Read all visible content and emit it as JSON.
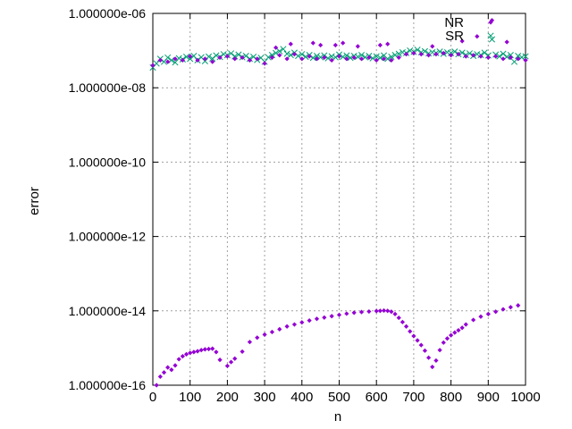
{
  "chart_data": {
    "type": "scatter",
    "title": "",
    "xlabel": "n",
    "ylabel": "error",
    "xlim": [
      0,
      1000
    ],
    "ylim": [
      1e-16,
      1e-06
    ],
    "yscale": "log",
    "grid": true,
    "legend_position": "top-right",
    "xticks": [
      0,
      100,
      200,
      300,
      400,
      500,
      600,
      700,
      800,
      900,
      1000
    ],
    "xtick_labels": [
      "0",
      "100",
      "200",
      "300",
      "400",
      "500",
      "600",
      "700",
      "800",
      "900",
      "1000"
    ],
    "yticks": [
      1e-16,
      1e-14,
      1e-12,
      1e-10,
      1e-08,
      1e-06
    ],
    "ytick_labels": [
      "1.000000e-16",
      "1.000000e-14",
      "1.000000e-12",
      "1.000000e-10",
      "1.000000e-08",
      "1.000000e-06"
    ],
    "series": [
      {
        "name": "NR",
        "marker": "diamond",
        "color": "#9400d3",
        "points": [
          [
            0,
            4e-08
          ],
          [
            20,
            5.5e-08
          ],
          [
            40,
            5e-08
          ],
          [
            60,
            6e-08
          ],
          [
            80,
            5.5e-08
          ],
          [
            100,
            7e-08
          ],
          [
            120,
            5.5e-08
          ],
          [
            140,
            6e-08
          ],
          [
            160,
            5e-08
          ],
          [
            180,
            6.5e-08
          ],
          [
            200,
            7e-08
          ],
          [
            220,
            6e-08
          ],
          [
            240,
            6.5e-08
          ],
          [
            260,
            5.5e-08
          ],
          [
            280,
            6e-08
          ],
          [
            300,
            4.5e-08
          ],
          [
            320,
            6.5e-08
          ],
          [
            340,
            7.5e-08
          ],
          [
            360,
            6e-08
          ],
          [
            380,
            8e-08
          ],
          [
            400,
            6e-08
          ],
          [
            420,
            7e-08
          ],
          [
            440,
            6e-08
          ],
          [
            460,
            6.5e-08
          ],
          [
            480,
            5.5e-08
          ],
          [
            500,
            7e-08
          ],
          [
            520,
            6e-08
          ],
          [
            540,
            6.5e-08
          ],
          [
            560,
            6e-08
          ],
          [
            580,
            6.5e-08
          ],
          [
            600,
            5.5e-08
          ],
          [
            620,
            6e-08
          ],
          [
            640,
            5.5e-08
          ],
          [
            660,
            6.5e-08
          ],
          [
            680,
            8e-08
          ],
          [
            700,
            8.5e-08
          ],
          [
            720,
            8e-08
          ],
          [
            740,
            7.5e-08
          ],
          [
            760,
            8e-08
          ],
          [
            780,
            8.5e-08
          ],
          [
            800,
            7.5e-08
          ],
          [
            820,
            8e-08
          ],
          [
            840,
            7e-08
          ],
          [
            860,
            7.5e-08
          ],
          [
            880,
            7e-08
          ],
          [
            900,
            6.5e-08
          ],
          [
            920,
            7e-08
          ],
          [
            940,
            6e-08
          ],
          [
            960,
            6.5e-08
          ],
          [
            980,
            6e-08
          ],
          [
            1000,
            5.5e-08
          ],
          [
            330,
            1.2e-07
          ],
          [
            370,
            1.5e-07
          ],
          [
            430,
            1.6e-07
          ],
          [
            450,
            1.4e-07
          ],
          [
            490,
            1.4e-07
          ],
          [
            510,
            1.6e-07
          ],
          [
            550,
            1.3e-07
          ],
          [
            610,
            1.4e-07
          ],
          [
            630,
            1.5e-07
          ],
          [
            750,
            1.3e-07
          ],
          [
            830,
            1.8e-07
          ],
          [
            870,
            2.4e-07
          ],
          [
            910,
            6.5e-07
          ],
          [
            950,
            1.7e-07
          ],
          [
            10,
            1e-16
          ],
          [
            20,
            1.7e-16
          ],
          [
            30,
            2.2e-16
          ],
          [
            40,
            3e-16
          ],
          [
            50,
            2.6e-16
          ],
          [
            60,
            3.4e-16
          ],
          [
            70,
            5e-16
          ],
          [
            80,
            6e-16
          ],
          [
            90,
            6.8e-16
          ],
          [
            100,
            7.4e-16
          ],
          [
            110,
            7.8e-16
          ],
          [
            120,
            8.2e-16
          ],
          [
            130,
            8.8e-16
          ],
          [
            140,
            9.2e-16
          ],
          [
            150,
            9.4e-16
          ],
          [
            160,
            9.6e-16
          ],
          [
            170,
            7.8e-16
          ],
          [
            180,
            4.8e-16
          ],
          [
            200,
            3.3e-16
          ],
          [
            210,
            4.2e-16
          ],
          [
            220,
            5.2e-16
          ],
          [
            240,
            8e-16
          ],
          [
            260,
            1.45e-15
          ],
          [
            280,
            1.9e-15
          ],
          [
            300,
            2.3e-15
          ],
          [
            320,
            2.7e-15
          ],
          [
            340,
            3.2e-15
          ],
          [
            360,
            3.8e-15
          ],
          [
            380,
            4.3e-15
          ],
          [
            400,
            4.9e-15
          ],
          [
            420,
            5.5e-15
          ],
          [
            440,
            6.1e-15
          ],
          [
            460,
            6.6e-15
          ],
          [
            480,
            7.2e-15
          ],
          [
            500,
            7.8e-15
          ],
          [
            520,
            8.4e-15
          ],
          [
            540,
            8.9e-15
          ],
          [
            560,
            9.3e-15
          ],
          [
            580,
            9.6e-15
          ],
          [
            600,
            9.9e-15
          ],
          [
            610,
            1e-14
          ],
          [
            620,
            1.02e-14
          ],
          [
            630,
            1e-14
          ],
          [
            640,
            9.5e-15
          ],
          [
            650,
            8.2e-15
          ],
          [
            660,
            6.5e-15
          ],
          [
            670,
            5e-15
          ],
          [
            680,
            3.8e-15
          ],
          [
            690,
            2.8e-15
          ],
          [
            700,
            2.1e-15
          ],
          [
            710,
            1.6e-15
          ],
          [
            720,
            1.2e-15
          ],
          [
            730,
            8.5e-16
          ],
          [
            740,
            5.5e-16
          ],
          [
            750,
            3.1e-16
          ],
          [
            760,
            4.6e-16
          ],
          [
            770,
            8.8e-16
          ],
          [
            780,
            1.4e-15
          ],
          [
            790,
            1.8e-15
          ],
          [
            800,
            2.2e-15
          ],
          [
            810,
            2.6e-15
          ],
          [
            820,
            3e-15
          ],
          [
            830,
            3.5e-15
          ],
          [
            840,
            4.3e-15
          ],
          [
            860,
            5.7e-15
          ],
          [
            880,
            7e-15
          ],
          [
            900,
            8.2e-15
          ],
          [
            920,
            9.5e-15
          ],
          [
            940,
            1.1e-14
          ],
          [
            960,
            1.25e-14
          ],
          [
            980,
            1.4e-14
          ]
        ]
      },
      {
        "name": "SR",
        "marker": "cross",
        "color": "#009e73",
        "points": [
          [
            0,
            3.5e-08
          ],
          [
            10,
            4.5e-08
          ],
          [
            20,
            6e-08
          ],
          [
            30,
            5e-08
          ],
          [
            40,
            6.5e-08
          ],
          [
            50,
            5.5e-08
          ],
          [
            60,
            4.8e-08
          ],
          [
            70,
            6.2e-08
          ],
          [
            80,
            5.8e-08
          ],
          [
            90,
            6.8e-08
          ],
          [
            100,
            6e-08
          ],
          [
            110,
            7.2e-08
          ],
          [
            120,
            5.5e-08
          ],
          [
            130,
            6.6e-08
          ],
          [
            140,
            5.2e-08
          ],
          [
            150,
            6.9e-08
          ],
          [
            160,
            6.1e-08
          ],
          [
            170,
            7.4e-08
          ],
          [
            180,
            6.7e-08
          ],
          [
            190,
            8e-08
          ],
          [
            200,
            7.5e-08
          ],
          [
            210,
            8.4e-08
          ],
          [
            220,
            7e-08
          ],
          [
            230,
            7.8e-08
          ],
          [
            240,
            6.6e-08
          ],
          [
            250,
            7.2e-08
          ],
          [
            260,
            6e-08
          ],
          [
            270,
            6.8e-08
          ],
          [
            280,
            5.6e-08
          ],
          [
            290,
            6.4e-08
          ],
          [
            300,
            5e-08
          ],
          [
            310,
            6.6e-08
          ],
          [
            320,
            7.6e-08
          ],
          [
            330,
            8.6e-08
          ],
          [
            340,
            9.6e-08
          ],
          [
            350,
            1.1e-07
          ],
          [
            360,
            8.2e-08
          ],
          [
            370,
            7.6e-08
          ],
          [
            380,
            8.8e-08
          ],
          [
            390,
            7.2e-08
          ],
          [
            400,
            8e-08
          ],
          [
            410,
            6.8e-08
          ],
          [
            420,
            7.6e-08
          ],
          [
            430,
            6.4e-08
          ],
          [
            440,
            7.2e-08
          ],
          [
            450,
            6.6e-08
          ],
          [
            460,
            7.4e-08
          ],
          [
            470,
            6.2e-08
          ],
          [
            480,
            7e-08
          ],
          [
            490,
            6.6e-08
          ],
          [
            500,
            7.8e-08
          ],
          [
            510,
            6.8e-08
          ],
          [
            520,
            7.4e-08
          ],
          [
            530,
            6.4e-08
          ],
          [
            540,
            7.2e-08
          ],
          [
            550,
            6.8e-08
          ],
          [
            560,
            7.6e-08
          ],
          [
            570,
            6.6e-08
          ],
          [
            580,
            7.2e-08
          ],
          [
            590,
            6.2e-08
          ],
          [
            600,
            7e-08
          ],
          [
            610,
            6.4e-08
          ],
          [
            620,
            7.4e-08
          ],
          [
            630,
            6e-08
          ],
          [
            640,
            6.8e-08
          ],
          [
            650,
            7.6e-08
          ],
          [
            660,
            8.2e-08
          ],
          [
            670,
            9e-08
          ],
          [
            680,
            8.6e-08
          ],
          [
            690,
            1e-07
          ],
          [
            700,
            9.2e-08
          ],
          [
            710,
            1.05e-07
          ],
          [
            720,
            9e-08
          ],
          [
            730,
            9.6e-08
          ],
          [
            740,
            8.4e-08
          ],
          [
            750,
            9e-08
          ],
          [
            760,
            8.6e-08
          ],
          [
            770,
            9.4e-08
          ],
          [
            780,
            8.2e-08
          ],
          [
            790,
            9e-08
          ],
          [
            800,
            8.6e-08
          ],
          [
            810,
            9.4e-08
          ],
          [
            820,
            8e-08
          ],
          [
            830,
            8.8e-08
          ],
          [
            840,
            7.6e-08
          ],
          [
            850,
            8.4e-08
          ],
          [
            860,
            7.2e-08
          ],
          [
            870,
            8e-08
          ],
          [
            880,
            7.6e-08
          ],
          [
            890,
            8.8e-08
          ],
          [
            900,
            7.4e-08
          ],
          [
            910,
            2e-07
          ],
          [
            920,
            7.8e-08
          ],
          [
            930,
            7e-08
          ],
          [
            940,
            8.2e-08
          ],
          [
            950,
            6.8e-08
          ],
          [
            960,
            7.6e-08
          ],
          [
            970,
            5e-08
          ],
          [
            980,
            7.2e-08
          ],
          [
            990,
            6.6e-08
          ],
          [
            1000,
            7e-08
          ]
        ]
      }
    ]
  }
}
